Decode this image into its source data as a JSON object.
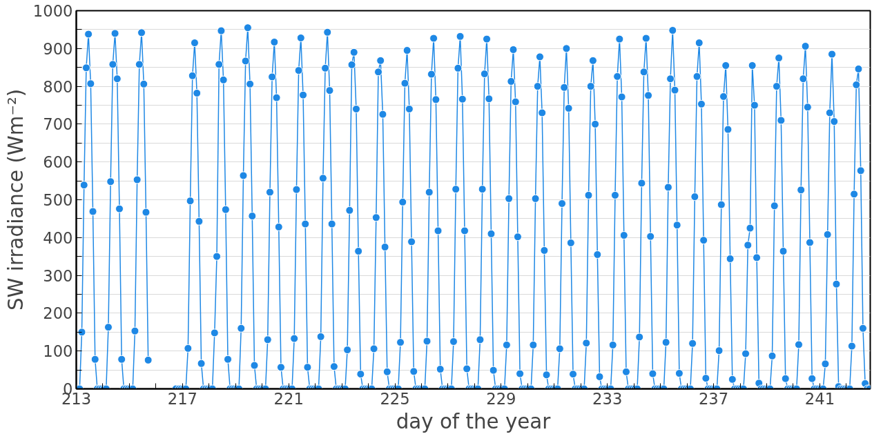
{
  "chart_data": {
    "type": "line",
    "xlabel": "day of the year",
    "ylabel": "SW irradiance (Wm⁻²)",
    "xlim": [
      213,
      242.9
    ],
    "ylim": [
      0,
      1000
    ],
    "xticks": [
      213,
      {
        "value": 214,
        "label": null
      },
      {
        "value": 215,
        "label": null
      },
      {
        "value": 216,
        "label": null
      },
      217,
      {
        "value": 218,
        "label": null
      },
      {
        "value": 219,
        "label": null
      },
      {
        "value": 220,
        "label": null
      },
      221,
      {
        "value": 222,
        "label": null
      },
      {
        "value": 223,
        "label": null
      },
      {
        "value": 224,
        "label": null
      },
      225,
      {
        "value": 226,
        "label": null
      },
      {
        "value": 227,
        "label": null
      },
      {
        "value": 228,
        "label": null
      },
      229,
      {
        "value": 230,
        "label": null
      },
      {
        "value": 231,
        "label": null
      },
      {
        "value": 232,
        "label": null
      },
      233,
      {
        "value": 234,
        "label": null
      },
      {
        "value": 235,
        "label": null
      },
      {
        "value": 236,
        "label": null
      },
      237,
      {
        "value": 238,
        "label": null
      },
      {
        "value": 239,
        "label": null
      },
      {
        "value": 240,
        "label": null
      },
      241,
      {
        "value": 242,
        "label": null
      }
    ],
    "yticks": [
      0,
      {
        "value": 50,
        "label": null
      },
      100,
      {
        "value": 150,
        "label": null
      },
      200,
      {
        "value": 250,
        "label": null
      },
      300,
      {
        "value": 350,
        "label": null
      },
      400,
      {
        "value": 450,
        "label": null
      },
      500,
      {
        "value": 550,
        "label": null
      },
      600,
      {
        "value": 650,
        "label": null
      },
      700,
      {
        "value": 750,
        "label": null
      },
      800,
      {
        "value": 850,
        "label": null
      },
      900,
      {
        "value": 950,
        "label": null
      },
      1000
    ],
    "grid": "y",
    "marker": "circle",
    "line_style": "solid",
    "series": [
      {
        "color": "#1e88e5",
        "x": [
          213.042,
          213.125,
          213.208,
          213.292,
          213.375,
          213.458,
          213.542,
          213.625,
          213.708,
          213.792,
          213.875,
          213.958,
          214.042,
          214.125,
          214.208,
          214.292,
          214.375,
          214.458,
          214.542,
          214.625,
          214.708,
          214.792,
          214.875,
          214.958,
          215.042,
          215.125,
          215.208,
          215.292,
          215.375,
          215.458,
          215.542,
          215.625,
          215.708,
          216.0,
          216.75,
          216.875,
          216.958,
          217.042,
          217.125,
          217.208,
          217.292,
          217.375,
          217.458,
          217.542,
          217.625,
          217.708,
          217.792,
          217.875,
          217.958,
          218.042,
          218.125,
          218.208,
          218.292,
          218.375,
          218.458,
          218.542,
          218.625,
          218.708,
          218.792,
          218.875,
          218.958,
          219.042,
          219.125,
          219.208,
          219.292,
          219.375,
          219.458,
          219.542,
          219.625,
          219.708,
          219.792,
          219.875,
          219.958,
          220.042,
          220.125,
          220.208,
          220.292,
          220.375,
          220.458,
          220.542,
          220.625,
          220.708,
          220.792,
          220.875,
          220.958,
          221.042,
          221.125,
          221.208,
          221.292,
          221.375,
          221.458,
          221.542,
          221.625,
          221.708,
          221.792,
          221.875,
          221.958,
          222.042,
          222.125,
          222.208,
          222.292,
          222.375,
          222.458,
          222.542,
          222.625,
          222.708,
          222.792,
          222.875,
          222.958,
          223.042,
          223.125,
          223.208,
          223.292,
          223.375,
          223.458,
          223.542,
          223.625,
          223.708,
          223.792,
          223.875,
          223.958,
          224.042,
          224.125,
          224.208,
          224.292,
          224.375,
          224.458,
          224.542,
          224.625,
          224.708,
          224.792,
          224.875,
          224.958,
          225.042,
          225.125,
          225.208,
          225.292,
          225.375,
          225.458,
          225.542,
          225.625,
          225.708,
          225.792,
          225.875,
          225.958,
          226.042,
          226.125,
          226.208,
          226.292,
          226.375,
          226.458,
          226.542,
          226.625,
          226.708,
          226.792,
          226.875,
          226.958,
          227.042,
          227.125,
          227.208,
          227.292,
          227.375,
          227.458,
          227.542,
          227.625,
          227.708,
          227.792,
          227.875,
          227.958,
          228.042,
          228.125,
          228.208,
          228.292,
          228.375,
          228.458,
          228.542,
          228.625,
          228.708,
          228.792,
          228.875,
          228.958,
          229.042,
          229.125,
          229.208,
          229.292,
          229.375,
          229.458,
          229.542,
          229.625,
          229.708,
          229.792,
          229.875,
          229.958,
          230.042,
          230.125,
          230.208,
          230.292,
          230.375,
          230.458,
          230.542,
          230.625,
          230.708,
          230.792,
          230.875,
          230.958,
          231.042,
          231.125,
          231.208,
          231.292,
          231.375,
          231.458,
          231.542,
          231.625,
          231.708,
          231.792,
          231.875,
          231.958,
          232.042,
          232.125,
          232.208,
          232.292,
          232.375,
          232.458,
          232.542,
          232.625,
          232.708,
          232.792,
          232.875,
          232.958,
          233.042,
          233.125,
          233.208,
          233.292,
          233.375,
          233.458,
          233.542,
          233.625,
          233.708,
          233.792,
          233.875,
          233.958,
          234.042,
          234.125,
          234.208,
          234.292,
          234.375,
          234.458,
          234.542,
          234.625,
          234.708,
          234.792,
          234.875,
          234.958,
          235.042,
          235.125,
          235.208,
          235.292,
          235.375,
          235.458,
          235.542,
          235.625,
          235.708,
          235.792,
          235.875,
          235.958,
          236.042,
          236.125,
          236.208,
          236.292,
          236.375,
          236.458,
          236.542,
          236.625,
          236.708,
          236.792,
          236.875,
          236.958,
          237.042,
          237.125,
          237.208,
          237.292,
          237.375,
          237.458,
          237.542,
          237.625,
          237.708,
          237.792,
          237.875,
          237.958,
          238.042,
          238.125,
          238.208,
          238.292,
          238.375,
          238.458,
          238.542,
          238.625,
          238.708,
          238.792,
          238.875,
          238.958,
          239.042,
          239.125,
          239.208,
          239.292,
          239.375,
          239.458,
          239.542,
          239.625,
          239.708,
          239.792,
          239.875,
          239.958,
          240.042,
          240.125,
          240.208,
          240.292,
          240.375,
          240.458,
          240.542,
          240.625,
          240.708,
          240.792,
          240.875,
          240.958,
          241.042,
          241.125,
          241.208,
          241.292,
          241.375,
          241.458,
          241.542,
          241.625,
          241.708,
          241.792,
          241.875,
          241.958,
          242.042,
          242.125,
          242.208,
          242.292,
          242.375,
          242.458,
          242.542,
          242.625,
          242.708,
          242.792,
          242.875
        ],
        "values": [
          0,
          0,
          150,
          539,
          849,
          938,
          807,
          469,
          78,
          0,
          0,
          0,
          0,
          0,
          163,
          548,
          858,
          940,
          820,
          476,
          78,
          0,
          0,
          0,
          0,
          0,
          153,
          553,
          858,
          942,
          806,
          467,
          76,
          null,
          0,
          0,
          0,
          0,
          0,
          107,
          497,
          828,
          915,
          782,
          443,
          67,
          0,
          0,
          0,
          0,
          0,
          148,
          350,
          858,
          947,
          817,
          474,
          78,
          0,
          0,
          0,
          0,
          0,
          160,
          564,
          867,
          955,
          806,
          457,
          62,
          0,
          0,
          0,
          0,
          0,
          130,
          520,
          825,
          917,
          770,
          428,
          57,
          0,
          0,
          0,
          0,
          0,
          133,
          527,
          842,
          928,
          777,
          436,
          57,
          0,
          0,
          0,
          0,
          0,
          138,
          557,
          848,
          943,
          789,
          436,
          59,
          0,
          0,
          0,
          0,
          0,
          103,
          472,
          857,
          890,
          740,
          364,
          39,
          0,
          0,
          0,
          0,
          0,
          106,
          453,
          838,
          868,
          726,
          375,
          45,
          0,
          0,
          0,
          0,
          0,
          123,
          494,
          808,
          895,
          740,
          389,
          46,
          0,
          0,
          0,
          0,
          0,
          126,
          520,
          832,
          927,
          765,
          418,
          52,
          0,
          0,
          0,
          0,
          0,
          125,
          528,
          848,
          932,
          766,
          418,
          53,
          0,
          0,
          0,
          0,
          0,
          130,
          528,
          833,
          925,
          767,
          410,
          49,
          0,
          0,
          0,
          0,
          0,
          116,
          503,
          813,
          897,
          759,
          402,
          40,
          0,
          0,
          0,
          0,
          0,
          116,
          503,
          800,
          878,
          730,
          366,
          37,
          0,
          0,
          0,
          0,
          0,
          106,
          490,
          797,
          900,
          742,
          386,
          39,
          0,
          0,
          0,
          0,
          0,
          121,
          512,
          800,
          868,
          700,
          355,
          32,
          0,
          0,
          0,
          0,
          0,
          116,
          512,
          826,
          925,
          772,
          406,
          45,
          0,
          0,
          0,
          0,
          0,
          137,
          544,
          838,
          927,
          776,
          403,
          40,
          0,
          0,
          0,
          0,
          0,
          123,
          533,
          820,
          948,
          790,
          433,
          41,
          0,
          0,
          0,
          0,
          0,
          120,
          508,
          826,
          915,
          753,
          393,
          28,
          0,
          0,
          0,
          0,
          0,
          101,
          487,
          773,
          855,
          686,
          344,
          25,
          0,
          0,
          0,
          0,
          0,
          93,
          380,
          425,
          855,
          750,
          347,
          15,
          0,
          0,
          0,
          0,
          0,
          87,
          484,
          800,
          875,
          710,
          364,
          27,
          0,
          0,
          0,
          0,
          0,
          117,
          526,
          820,
          906,
          745,
          387,
          27,
          0,
          0,
          0,
          0,
          0,
          66,
          408,
          730,
          885,
          707,
          277,
          6,
          0,
          0,
          0,
          0,
          0,
          113,
          515,
          804,
          846,
          577,
          160,
          14,
          0,
          0
        ]
      }
    ]
  }
}
